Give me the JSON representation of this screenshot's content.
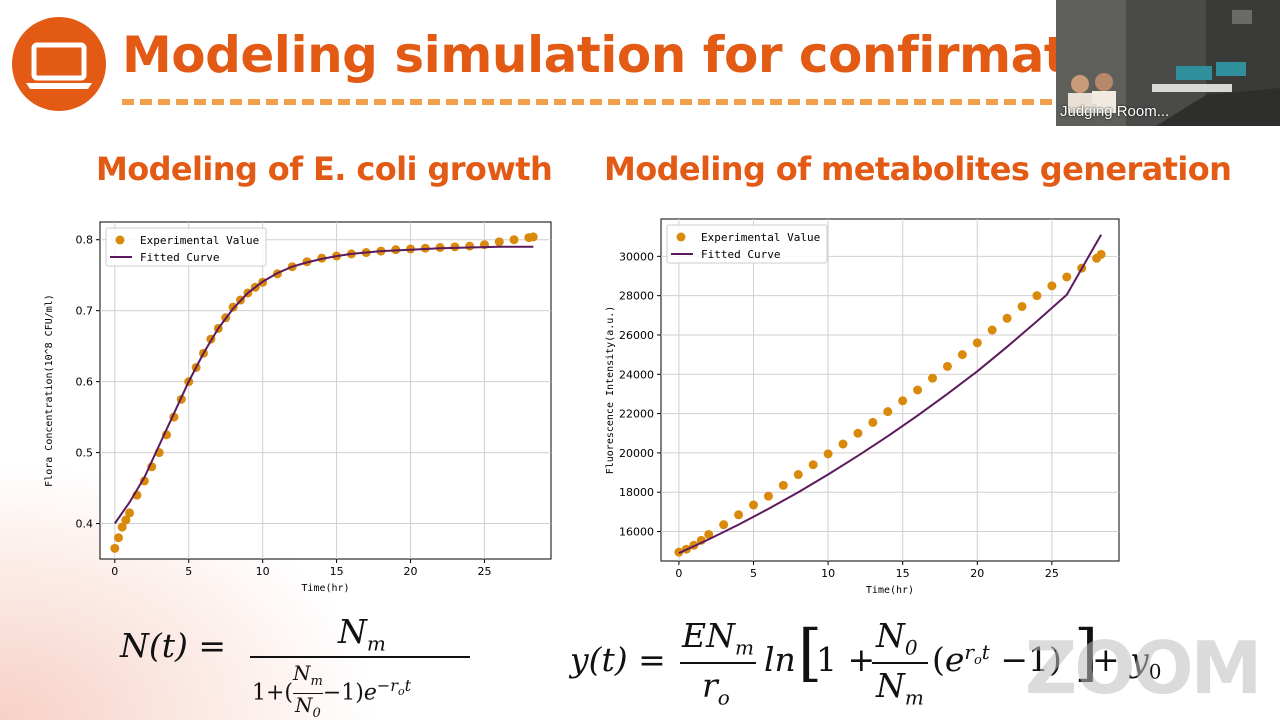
{
  "slide": {
    "title": "Modeling simulation for confirmati",
    "left_subtitle": "Modeling of E. coli growth",
    "right_subtitle": "Modeling of metabolites generation",
    "accent_color": "#e25a14",
    "logo_icon": "laptop-icon"
  },
  "video": {
    "label": "Judging Room..."
  },
  "watermark": {
    "text": "ZOOM"
  },
  "chart_data": [
    {
      "type": "scatter",
      "title": "",
      "xlabel": "Time(hr)",
      "ylabel": "Flora Concentration(10^8 CFU/ml)",
      "xlim": [
        -1,
        29.5
      ],
      "ylim": [
        0.35,
        0.825
      ],
      "xticks": [
        0,
        5,
        10,
        15,
        20,
        25
      ],
      "yticks": [
        0.4,
        0.5,
        0.6,
        0.7,
        0.8
      ],
      "grid": true,
      "legend_position": "top-left",
      "series": [
        {
          "name": "Experimental Value",
          "kind": "points",
          "color": "#d98a0b",
          "x": [
            0,
            0.25,
            0.5,
            0.75,
            1,
            1.5,
            2,
            2.5,
            3,
            3.5,
            4,
            4.5,
            5,
            5.5,
            6,
            6.5,
            7,
            7.5,
            8,
            8.5,
            9,
            9.5,
            10,
            11,
            12,
            13,
            14,
            15,
            16,
            17,
            18,
            19,
            20,
            21,
            22,
            23,
            24,
            25,
            26,
            27,
            28,
            28.3
          ],
          "y": [
            0.365,
            0.38,
            0.395,
            0.405,
            0.415,
            0.44,
            0.46,
            0.48,
            0.5,
            0.525,
            0.55,
            0.575,
            0.6,
            0.62,
            0.64,
            0.66,
            0.675,
            0.69,
            0.705,
            0.715,
            0.725,
            0.733,
            0.74,
            0.752,
            0.762,
            0.769,
            0.774,
            0.777,
            0.78,
            0.782,
            0.784,
            0.786,
            0.787,
            0.788,
            0.789,
            0.79,
            0.791,
            0.793,
            0.797,
            0.8,
            0.803,
            0.804
          ]
        },
        {
          "name": "Fitted Curve",
          "kind": "line",
          "color": "#5c1a5e",
          "x": [
            0,
            1,
            2,
            3,
            4,
            5,
            6,
            7,
            8,
            9,
            10,
            11,
            12,
            13,
            14,
            15,
            16,
            18,
            20,
            22,
            24,
            26,
            28.3
          ],
          "y": [
            0.4,
            0.43,
            0.465,
            0.51,
            0.555,
            0.6,
            0.64,
            0.675,
            0.703,
            0.725,
            0.741,
            0.753,
            0.762,
            0.768,
            0.773,
            0.777,
            0.78,
            0.784,
            0.786,
            0.788,
            0.789,
            0.79,
            0.79
          ]
        }
      ]
    },
    {
      "type": "scatter",
      "title": "",
      "xlabel": "Time(hr)",
      "ylabel": "Fluorescence Intensity(a.u.)",
      "xlim": [
        -1.2,
        29.5
      ],
      "ylim": [
        14500,
        31900
      ],
      "xticks": [
        0,
        5,
        10,
        15,
        20,
        25
      ],
      "yticks": [
        16000,
        18000,
        20000,
        22000,
        24000,
        26000,
        28000,
        30000
      ],
      "grid": true,
      "legend_position": "top-left",
      "series": [
        {
          "name": "Experimental Value",
          "kind": "points",
          "color": "#d98a0b",
          "x": [
            0,
            0.5,
            1,
            1.5,
            2,
            3,
            4,
            5,
            6,
            7,
            8,
            9,
            10,
            11,
            12,
            13,
            14,
            15,
            16,
            17,
            18,
            19,
            20,
            21,
            22,
            23,
            24,
            25,
            26,
            27,
            28,
            28.3
          ],
          "y": [
            14950,
            15100,
            15300,
            15550,
            15850,
            16350,
            16850,
            17350,
            17800,
            18350,
            18900,
            19400,
            19950,
            20450,
            21000,
            21550,
            22100,
            22650,
            23200,
            23800,
            24400,
            25000,
            25600,
            26250,
            26850,
            27450,
            28000,
            28500,
            28950,
            29400,
            29900,
            30100
          ]
        },
        {
          "name": "Fitted Curve",
          "kind": "line",
          "color": "#5c1a5e",
          "x": [
            0,
            2,
            4,
            6,
            8,
            10,
            12,
            14,
            16,
            18,
            20,
            22,
            24,
            26,
            28.3
          ],
          "y": [
            14900,
            15600,
            16350,
            17150,
            18000,
            18900,
            19850,
            20850,
            21900,
            23000,
            24150,
            25400,
            26700,
            28050,
            31100
          ]
        }
      ]
    }
  ]
}
